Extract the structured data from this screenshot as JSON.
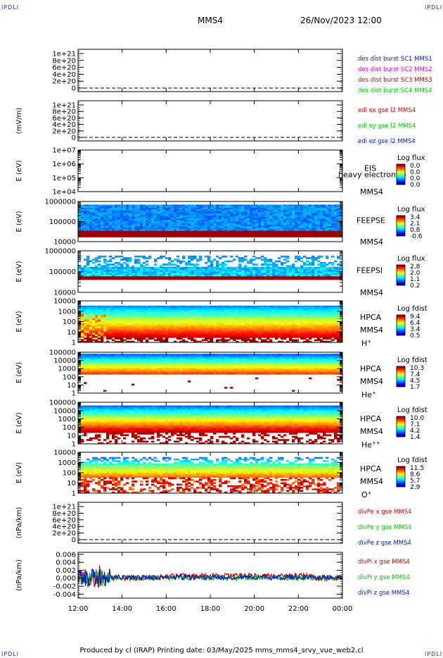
{
  "header": {
    "corner_labels": [
      "IPDLI",
      "IPDLI",
      "IPDLI",
      "IPDLI"
    ],
    "spacecraft": "MMS4",
    "datetime": "26/Nov/2023 12:00"
  },
  "footer": "Produced by cl (IRAP)   Printing date: 03/May/2025   mms_mms4_srvy_vue_web2.cl",
  "time_axis": [
    "12:00",
    "14:00",
    "16:00",
    "18:00",
    "20:00",
    "22:00",
    "00:00"
  ],
  "colors": {
    "blue": "#0018c8",
    "magenta": "#d800d8",
    "red": "#d80000",
    "green": "#00c800"
  },
  "chart_data": [
    {
      "id": "des-dist-burst",
      "type": "line",
      "ylabel": "",
      "y_ticks": [
        "1e+21",
        "8e+20",
        "6e+20",
        "4e+20",
        "2e+20",
        "0"
      ],
      "series": [
        {
          "name": "des dist burst SC1 MMS1",
          "color": "#0018c8"
        },
        {
          "name": "des dist burst SC2 MMS2",
          "color": "#d800d8"
        },
        {
          "name": "des dist burst SC3 MMS3",
          "color": "#d80000"
        },
        {
          "name": "des dist burst SC4 MMS4",
          "color": "#00c800"
        }
      ]
    },
    {
      "id": "edi-e-gse",
      "type": "line",
      "ylabel": "(mV/m)",
      "y_ticks": [
        "1e+21",
        "8e+20",
        "6e+20",
        "4e+20",
        "2e+20",
        "0"
      ],
      "series": [
        {
          "name": "edi ex gse l2 MMS4",
          "color": "#d80000"
        },
        {
          "name": "edi ey gse l2 MMS4",
          "color": "#00c800"
        },
        {
          "name": "edi ez gse l2 MMS4",
          "color": "#0018c8"
        }
      ]
    },
    {
      "id": "eis",
      "type": "heatmap",
      "ylabel": "E (eV)",
      "y_ticks": [
        "1e+07",
        "1e+06",
        "1e+05",
        "1e+04"
      ],
      "labels": [
        "EIS",
        "MMS4"
      ],
      "overlay_text": "heavy electron to",
      "colorbar_title": "Log flux",
      "colorbar_ticks": [
        "0.0",
        "0.0",
        "0.0",
        "0.0"
      ]
    },
    {
      "id": "feepse",
      "type": "heatmap",
      "ylabel": "E (eV)",
      "y_ticks": [
        "1000000",
        "100000",
        "10000"
      ],
      "labels": [
        "FEEPSE",
        "MMS4"
      ],
      "colorbar_title": "Log flux",
      "colorbar_ticks": [
        "3.4",
        "2.1",
        "0.8",
        "-0.6"
      ]
    },
    {
      "id": "feepsi",
      "type": "heatmap",
      "ylabel": "E (eV)",
      "y_ticks": [
        "1000000",
        "100000",
        "10000"
      ],
      "labels": [
        "FEEPSI",
        "MMS4"
      ],
      "colorbar_title": "Log flux",
      "colorbar_ticks": [
        "2.8",
        "2.0",
        "1.1",
        "0.2"
      ]
    },
    {
      "id": "hpca-h",
      "type": "heatmap",
      "ylabel": "E (eV)",
      "y_ticks": [
        "10000",
        "1000",
        "100",
        "10",
        "1"
      ],
      "labels": [
        "HPCA",
        "MMS4"
      ],
      "species": "H",
      "species_sup": "+",
      "colorbar_title": "Log fdist",
      "colorbar_ticks": [
        "9.4",
        "6.4",
        "3.4",
        "0.5"
      ]
    },
    {
      "id": "hpca-he",
      "type": "heatmap",
      "ylabel": "E (eV)",
      "y_ticks": [
        "100000",
        "10000",
        "1000",
        "100",
        "10",
        "1"
      ],
      "labels": [
        "HPCA",
        "MMS4"
      ],
      "species": "He",
      "species_sup": "+",
      "colorbar_title": "Log fdist",
      "colorbar_ticks": [
        "10.3",
        "7.4",
        "4.5",
        "1.7"
      ]
    },
    {
      "id": "hpca-hepp",
      "type": "heatmap",
      "ylabel": "E (eV)",
      "y_ticks": [
        "100000",
        "10000",
        "1000",
        "100",
        "10",
        "1"
      ],
      "labels": [
        "HPCA",
        "MMS4"
      ],
      "species": "He",
      "species_sup": "++",
      "colorbar_title": "Log fdist",
      "colorbar_ticks": [
        "10.0",
        "7.1",
        "4.2",
        "1.4"
      ]
    },
    {
      "id": "hpca-o",
      "type": "heatmap",
      "ylabel": "E (eV)",
      "y_ticks": [
        "10000",
        "1000",
        "100",
        "10",
        "1"
      ],
      "labels": [
        "HPCA",
        "MMS4"
      ],
      "species": "O",
      "species_sup": "+",
      "colorbar_title": "Log fdist",
      "colorbar_ticks": [
        "11.5",
        "8.6",
        "5.7",
        "2.9"
      ]
    },
    {
      "id": "divpe",
      "type": "line",
      "ylabel": "(nPa/km)",
      "y_ticks": [
        "1e+21",
        "8e+20",
        "6e+20",
        "4e+20",
        "2e+20",
        "0"
      ],
      "series": [
        {
          "name": "divPe x gse MMS4",
          "color": "#d80000"
        },
        {
          "name": "divPe y gse MMS4",
          "color": "#00c800"
        },
        {
          "name": "divPe z gse MMS4",
          "color": "#0018c8"
        }
      ]
    },
    {
      "id": "divpi",
      "type": "line",
      "ylabel": "(nPa/km)",
      "y_ticks": [
        "0.006",
        "0.004",
        "0.002",
        "0.000",
        "-0.002",
        "-0.004"
      ],
      "ylim": [
        -0.005,
        0.0065
      ],
      "series": [
        {
          "name": "divPi x gse MMS4",
          "color": "#d80000"
        },
        {
          "name": "divPi y gse MMS4",
          "color": "#00c800"
        },
        {
          "name": "divPi z gse MMS4",
          "color": "#0018c8"
        }
      ]
    }
  ]
}
